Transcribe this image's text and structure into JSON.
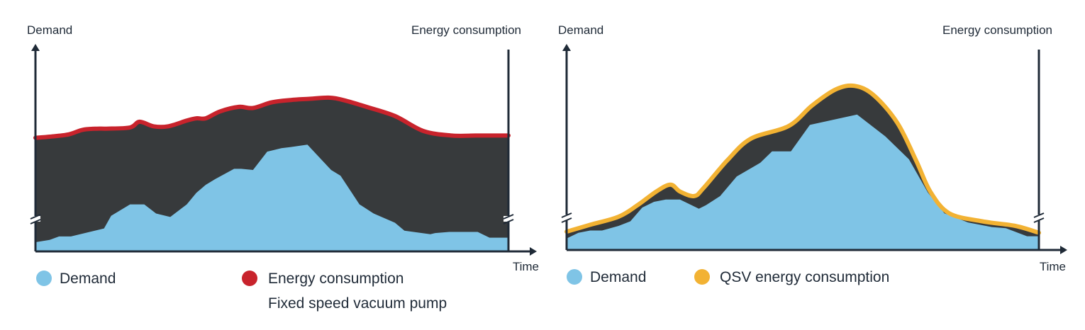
{
  "colors": {
    "demand": "#7fc4e6",
    "waste_fill": "#373a3c",
    "fixed_consumption": "#c8232c",
    "qsv_consumption": "#f2b233",
    "axis": "#1f2a37"
  },
  "chart_data": [
    {
      "type": "area",
      "title": "",
      "ylabel": "Demand",
      "y2label": "Energy consumption",
      "xlabel": "Time",
      "xlim": [
        0,
        100
      ],
      "ylim": [
        0,
        100
      ],
      "y_axis_broken": true,
      "grid": false,
      "legend": {
        "position": "bottom",
        "items": [
          {
            "label": "Demand",
            "color_key": "demand"
          },
          {
            "label": "Energy consumption",
            "color_key": "fixed_consumption"
          }
        ],
        "caption": "Fixed speed vacuum pump"
      },
      "series": [
        {
          "name": "Demand",
          "x": [
            0,
            3,
            5,
            7.5,
            14.5,
            16,
            20,
            23,
            25.5,
            28.5,
            32,
            34,
            36,
            38,
            42,
            43.5,
            46,
            49,
            52,
            54,
            57.5,
            62.5,
            64.5,
            68.5,
            71.5,
            76,
            78,
            83.5,
            84.5,
            87.5,
            93.5,
            96,
            100
          ],
          "y": [
            8,
            10,
            13,
            13,
            20,
            31,
            41,
            41,
            33,
            30,
            41,
            51,
            58,
            63,
            72,
            72,
            71,
            87,
            90,
            91,
            93,
            71,
            66,
            41,
            33,
            25,
            18,
            15,
            16,
            17,
            17,
            12,
            12
          ]
        },
        {
          "name": "Energy consumption",
          "x": [
            0,
            3,
            7,
            10,
            13,
            15,
            20,
            22,
            25,
            28,
            32,
            34,
            36,
            39,
            43,
            46,
            50,
            54,
            58,
            62,
            65,
            70,
            76,
            82,
            88,
            93,
            96,
            100
          ],
          "y": [
            99,
            100,
            102,
            106,
            107,
            107,
            108,
            113,
            109,
            109,
            114,
            116,
            116,
            122,
            126,
            125,
            130,
            132,
            133,
            134,
            132,
            126,
            118,
            105,
            101,
            101,
            101,
            101
          ]
        }
      ]
    },
    {
      "type": "area",
      "title": "",
      "ylabel": "Demand",
      "y2label": "Energy consumption",
      "xlabel": "Time",
      "xlim": [
        0,
        100
      ],
      "ylim": [
        0,
        100
      ],
      "y_axis_broken": true,
      "grid": false,
      "legend": {
        "position": "bottom",
        "items": [
          {
            "label": "Demand",
            "color_key": "demand"
          },
          {
            "label": "QSV energy consumption",
            "color_key": "qsv_consumption"
          }
        ],
        "caption": ""
      },
      "series": [
        {
          "name": "Demand",
          "x": [
            0,
            2.5,
            5,
            7.5,
            11,
            13.5,
            16,
            18.5,
            21,
            24,
            26,
            28,
            29.5,
            32.5,
            36,
            41,
            43.5,
            47.5,
            51.5,
            61.5,
            67.5,
            72.5,
            76.5,
            80,
            85,
            90,
            93,
            97.5,
            100
          ],
          "y": [
            10,
            15,
            17,
            17,
            21,
            25,
            37,
            42,
            44,
            44,
            40,
            36,
            39,
            47,
            64,
            76,
            86,
            86,
            109,
            118,
            99,
            79,
            50,
            32,
            24,
            20,
            19,
            12,
            12
          ]
        },
        {
          "name": "QSV energy consumption",
          "x": [
            0,
            5,
            11,
            15,
            19,
            22,
            24,
            27,
            29,
            34,
            39,
            47,
            52,
            57,
            61,
            65,
            70,
            74,
            77,
            81,
            88,
            95,
            100
          ],
          "y": [
            16,
            22,
            29,
            39,
            51,
            57,
            51,
            47,
            54,
            78,
            97,
            108,
            126,
            140,
            143,
            135,
            111,
            78,
            51,
            32,
            25,
            21,
            15
          ]
        }
      ]
    }
  ]
}
